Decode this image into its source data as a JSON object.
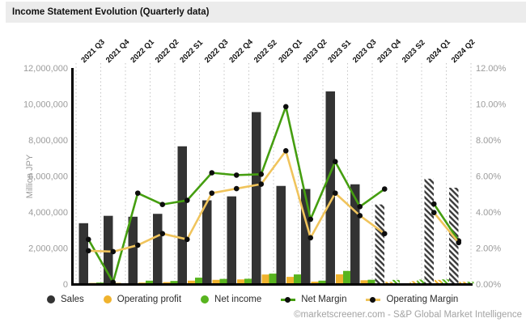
{
  "header": {
    "title": "Income Statement Evolution (Quarterly data)"
  },
  "footer": {
    "credit": "©marketscreener.com - S&P Global Market Intelligence"
  },
  "chart_data": {
    "type": "bar+line",
    "title": "Income Statement Evolution (Quarterly data)",
    "categories": [
      "2021 Q3",
      "2021 Q4",
      "2022 Q1",
      "2022 Q2",
      "2022 S1",
      "2022 Q3",
      "2022 Q4",
      "2022 S2",
      "2023 Q1",
      "2023 Q2",
      "2023 S1",
      "2023 Q3",
      "2023 Q4",
      "2023 S2",
      "2024 Q1",
      "2024 Q2"
    ],
    "left_axis": {
      "label": "Million JPY",
      "min": 0,
      "max": 12000000,
      "tick_labels": [
        "12,000,000",
        "10,000,000",
        "8,000,000",
        "6,000,000",
        "4,000,000",
        "2,000,000",
        "0"
      ]
    },
    "right_axis": {
      "min": 0,
      "max": 12,
      "tick_labels": [
        "12.00%",
        "10.00%",
        "8.00%",
        "6.00%",
        "4.00%",
        "2.00%",
        "0.00%"
      ]
    },
    "grid": "vertical-dotted",
    "legend_position": "bottom",
    "estimate_from_index": 12,
    "series": [
      {
        "name": "Sales",
        "type": "bar",
        "axis": "left",
        "color": "#333333",
        "values": [
          3380000,
          3790000,
          3740000,
          3900000,
          7650000,
          4650000,
          4870000,
          9550000,
          5450000,
          5280000,
          10700000,
          5540000,
          4420000,
          null,
          5850000,
          5350000
        ]
      },
      {
        "name": "Operating profit",
        "type": "bar",
        "axis": "left",
        "color": "#f0b32e",
        "values": [
          63000,
          68000,
          81000,
          109000,
          190000,
          235000,
          258000,
          530000,
          400000,
          136000,
          540000,
          212000,
          124000,
          160000,
          232000,
          127000
        ]
      },
      {
        "name": "Net income",
        "type": "bar",
        "axis": "left",
        "color": "#58b41f",
        "values": [
          84000,
          5000,
          189000,
          172000,
          356000,
          287000,
          295000,
          580000,
          535000,
          190000,
          730000,
          240000,
          233000,
          250000,
          261000,
          130000
        ]
      },
      {
        "name": "Net Margin",
        "type": "line",
        "axis": "right",
        "color": "#459e10",
        "values": [
          2.48,
          0.1,
          5.05,
          4.42,
          4.65,
          6.18,
          6.05,
          6.1,
          9.85,
          3.6,
          6.8,
          4.3,
          5.28,
          null,
          4.45,
          2.4
        ]
      },
      {
        "name": "Operating Margin",
        "type": "line",
        "axis": "right",
        "color": "#f0c45c",
        "values": [
          1.85,
          1.8,
          2.16,
          2.8,
          2.48,
          5.05,
          5.3,
          5.55,
          7.4,
          2.57,
          5.05,
          3.8,
          2.8,
          null,
          3.97,
          2.3
        ]
      }
    ]
  }
}
